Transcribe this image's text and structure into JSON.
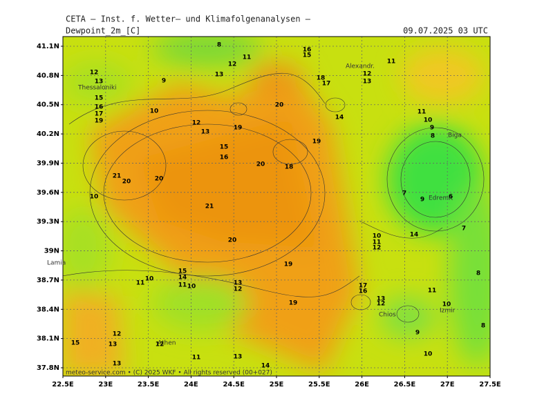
{
  "header": {
    "agency": "CETA – Inst. f. Wetter– und Klimafolgenanalysen –",
    "variable": "Dewpoint_2m_[C]",
    "datetime": "09.07.2025 03 UTC"
  },
  "lat_labels": [
    "41.1N",
    "40.8N",
    "40.5N",
    "40.2N",
    "39.9N",
    "39.6N",
    "39.3N",
    "39N",
    "38.7N",
    "38.4N",
    "38.1N",
    "37.8N"
  ],
  "lon_labels": [
    "22.5E",
    "23E",
    "23.5E",
    "24E",
    "24.5E",
    "25E",
    "25.5E",
    "26E",
    "26.5E",
    "27E",
    "27.5E"
  ],
  "places": [
    "Thessaloniki",
    "Alexandr.",
    "Lamia",
    "Edremit",
    "Biga",
    "Chios",
    "Izmir",
    "Athen"
  ],
  "contour_labels": [
    "8",
    "11",
    "12",
    "13",
    "16",
    "15",
    "12",
    "13",
    "11",
    "12",
    "13",
    "15",
    "16",
    "17",
    "19",
    "9",
    "10",
    "12",
    "13",
    "19",
    "20",
    "18",
    "17",
    "14",
    "19",
    "20",
    "18",
    "15",
    "16",
    "21",
    "20",
    "20",
    "21",
    "10",
    "7",
    "9",
    "6",
    "7",
    "11",
    "10",
    "9",
    "8",
    "10",
    "11",
    "12",
    "14",
    "20",
    "19",
    "15",
    "14",
    "11",
    "10",
    "11",
    "10",
    "13",
    "12",
    "19",
    "17",
    "16",
    "13",
    "12",
    "11",
    "10",
    "8",
    "8",
    "9",
    "10",
    "12",
    "13",
    "15",
    "12",
    "11",
    "13",
    "13",
    "14"
  ],
  "footer": "meteo-service.com • (C) 2025 WKF • All rights reserved (00+027)"
}
